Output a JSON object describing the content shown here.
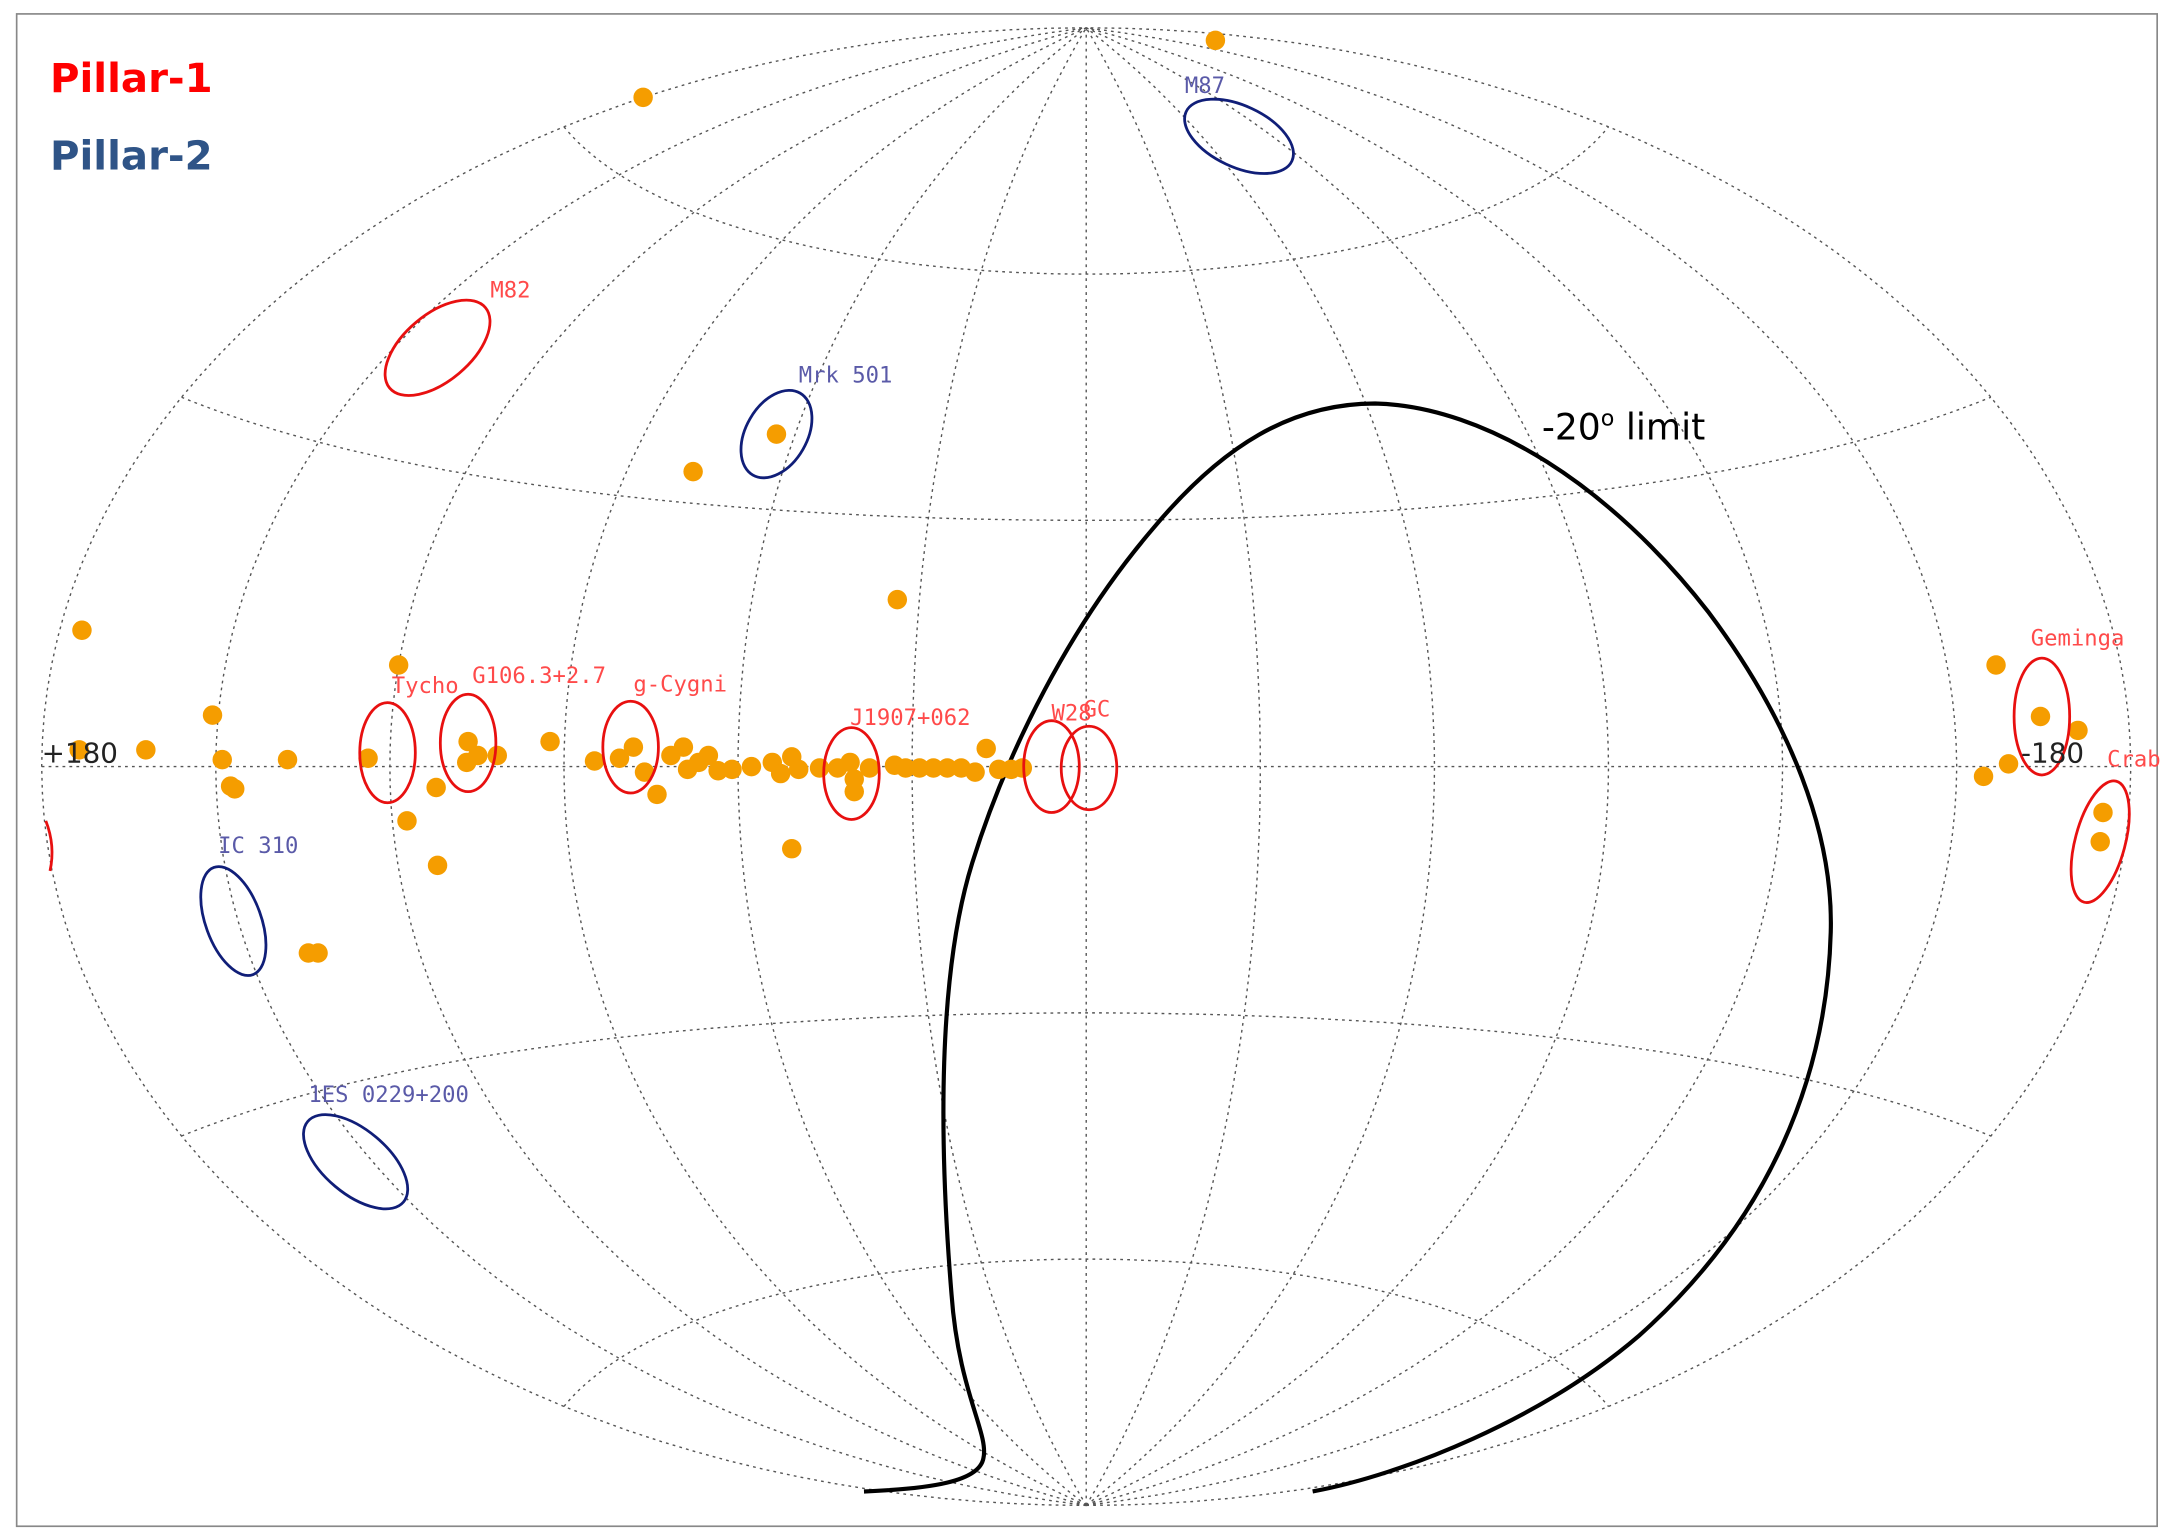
{
  "legend": [
    {
      "label": "Pillar-1",
      "color": "#ff0000"
    },
    {
      "label": "Pillar-2",
      "color": "#2f5487"
    }
  ],
  "axis_labels": {
    "left": "+180",
    "right": "-180"
  },
  "limit_label": {
    "text": "-20",
    "superscript": "o",
    "suffix": " limit"
  },
  "sources": [
    {
      "label": "M87",
      "pillar": 2
    },
    {
      "label": "M82",
      "pillar": 1
    },
    {
      "label": "Mrk 501",
      "pillar": 2
    },
    {
      "label": "Tycho",
      "pillar": 1
    },
    {
      "label": "G106.3+2.7",
      "pillar": 1
    },
    {
      "label": "g-Cygni",
      "pillar": 1
    },
    {
      "label": "J1907+062",
      "pillar": 1
    },
    {
      "label": "W28",
      "pillar": 1
    },
    {
      "label": "GC",
      "pillar": 1
    },
    {
      "label": "Geminga",
      "pillar": 1
    },
    {
      "label": "Crab",
      "pillar": 1
    },
    {
      "label": "IC 310",
      "pillar": 2
    },
    {
      "label": "1ES 0229+200",
      "pillar": 2
    }
  ]
}
